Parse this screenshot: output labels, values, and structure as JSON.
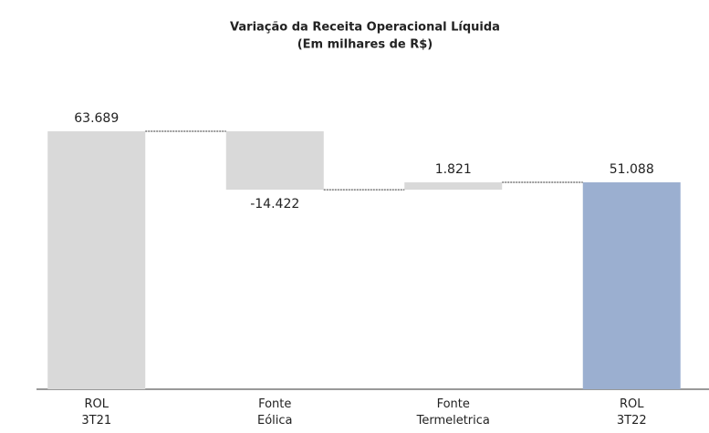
{
  "chart_data": {
    "type": "waterfall",
    "title": "Variação da Receita Operacional Líquida",
    "subtitle": "(Em milhares de R$)",
    "categories": [
      [
        "ROL",
        "3T21"
      ],
      [
        "Fonte",
        "Eólica"
      ],
      [
        "Fonte",
        "Termeletrica"
      ],
      [
        "ROL",
        "3T22"
      ]
    ],
    "values": [
      63689,
      -14422,
      1821,
      51088
    ],
    "value_labels": [
      "63.689",
      "-14.422",
      "1.821",
      "51.088"
    ],
    "measures": [
      "absolute",
      "relative",
      "relative",
      "total"
    ],
    "colors": [
      "#d9d9d9",
      "#d9d9d9",
      "#d9d9d9",
      "#9bafd0"
    ],
    "ylim": [
      0,
      70000
    ]
  }
}
